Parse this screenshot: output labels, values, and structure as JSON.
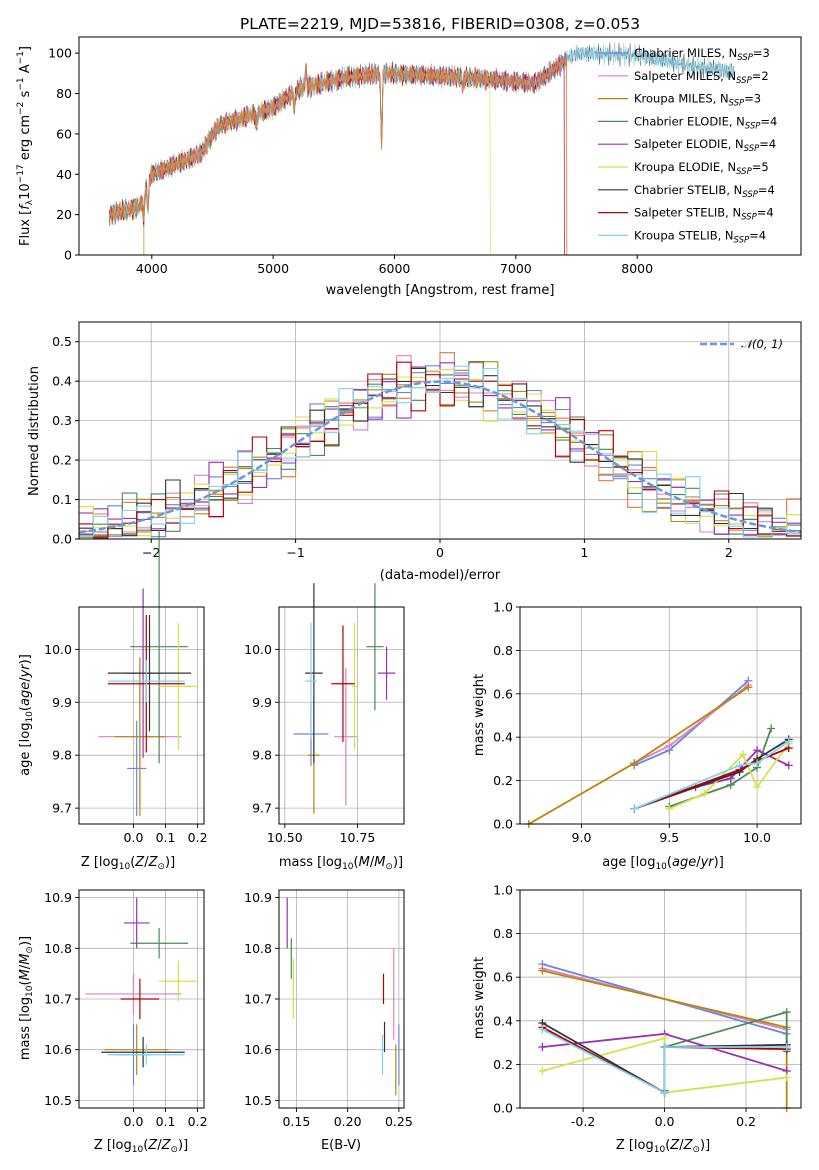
{
  "colors": [
    "#6a86d8",
    "#e47ec0",
    "#b8860b",
    "#4a8a55",
    "#9b30b5",
    "#d4e24a",
    "#333333",
    "#b30000",
    "#7fd4f0",
    "#e07b39"
  ],
  "spectrum": {
    "title": "PLATE=2219, MJD=53816, FIBERID=0308, z=0.053",
    "xlabel": "wavelength [Angstrom, rest frame]",
    "ylabel": "Flux [fλ 10⁻¹⁷ erg cm⁻² s⁻¹ A⁻¹]",
    "legend": [
      "Chabrier MILES, N_SSP=3",
      "Salpeter MILES, N_SSP=2",
      "Kroupa MILES, N_SSP=3",
      "Chabrier ELODIE, N_SSP=4",
      "Salpeter ELODIE, N_SSP=4",
      "Kroupa ELODIE, N_SSP=5",
      "Chabrier STELIB, N_SSP=4",
      "Salpeter STELIB, N_SSP=4",
      "Kroupa STELIB, N_SSP=4"
    ]
  },
  "hist": {
    "xlabel": "(data-model)/error",
    "ylabel": "Normed distribution",
    "legend": "N(0, 1)"
  },
  "chart_data": [
    {
      "type": "line",
      "id": "spectrum",
      "title": "PLATE=2219, MJD=53816, FIBERID=0308, z=0.053",
      "xlabel": "wavelength [Angstrom, rest frame]",
      "ylabel": "Flux [fλ 10⁻¹⁷ erg cm⁻² s⁻¹ A⁻¹]",
      "xlim": [
        3400,
        9350
      ],
      "ylim": [
        0,
        108
      ],
      "xticks": [
        4000,
        5000,
        6000,
        7000,
        8000
      ],
      "yticks": [
        0,
        20,
        40,
        60,
        80,
        100
      ],
      "continuum": {
        "x": [
          3650,
          3900,
          3950,
          4000,
          4400,
          4550,
          5000,
          5200,
          5600,
          5900,
          6600,
          7150,
          7250,
          7420,
          7500,
          8000,
          8500,
          8800
        ],
        "y": [
          20,
          24,
          33,
          40,
          50,
          64,
          73,
          82,
          88,
          90,
          88,
          85,
          89,
          97,
          100,
          99,
          93,
          91
        ]
      },
      "features": {
        "absorption": [
          {
            "x": 3933,
            "depth": 12
          },
          {
            "x": 3968,
            "depth": 12
          },
          {
            "x": 4861,
            "depth": 6
          },
          {
            "x": 5175,
            "depth": 8
          },
          {
            "x": 5893,
            "depth": 35
          },
          {
            "x": 6563,
            "depth": 5
          }
        ],
        "emission": [
          {
            "x": 5270,
            "height": 10
          }
        ]
      },
      "truncations": [
        {
          "series": "Kroupa MILES",
          "x": 3935
        },
        {
          "series": "Kroupa ELODIE",
          "x": 6790
        },
        {
          "series": "Salpeter STELIB",
          "x": 7400
        }
      ],
      "legend_loc": "upper right"
    },
    {
      "type": "step",
      "id": "residual-histogram",
      "xlabel": "(data-model)/error",
      "ylabel": "Normed distribution",
      "xlim": [
        -2.5,
        2.5
      ],
      "ylim": [
        0,
        0.55
      ],
      "xticks": [
        -2,
        -1,
        0,
        1,
        2
      ],
      "yticks": [
        0.0,
        0.1,
        0.2,
        0.3,
        0.4,
        0.5
      ],
      "bins": {
        "start": -2.5,
        "width": 0.1,
        "count": 50
      },
      "reference_curve": "N(0, 1)",
      "grid": true,
      "legend_loc": "upper right"
    },
    {
      "type": "errorbar",
      "id": "age-vs-Z",
      "xlabel": "Z [log10(Z/Z⊙)]",
      "ylabel": "age [log10(age/yr)]",
      "xlim": [
        -0.17,
        0.22
      ],
      "ylim": [
        9.67,
        10.08
      ],
      "xticks": [
        0.0,
        0.1,
        0.2
      ],
      "yticks": [
        9.7,
        9.8,
        9.9,
        10.0
      ],
      "points": [
        {
          "x": 0.01,
          "y": 9.775,
          "xerr": 0.03,
          "yerr": 0.09
        },
        {
          "x": 0.02,
          "y": 9.835,
          "xerr": 0.13,
          "yerr": 0.13
        },
        {
          "x": 0.02,
          "y": 9.835,
          "xerr": 0.08,
          "yerr": 0.15
        },
        {
          "x": 0.08,
          "y": 10.005,
          "xerr": 0.09,
          "yerr": 0.22
        },
        {
          "x": 0.03,
          "y": 9.955,
          "xerr": 0.06,
          "yerr": 0.16
        },
        {
          "x": 0.14,
          "y": 9.93,
          "xerr": 0.06,
          "yerr": 0.12
        },
        {
          "x": 0.05,
          "y": 9.955,
          "xerr": 0.13,
          "yerr": 0.11
        },
        {
          "x": 0.04,
          "y": 9.935,
          "xerr": 0.12,
          "yerr": 0.13
        },
        {
          "x": 0.04,
          "y": 9.94,
          "xerr": 0.12,
          "yerr": 0.04
        }
      ]
    },
    {
      "type": "errorbar",
      "id": "age-vs-mass",
      "xlabel": "mass [log10(M/M⊙)]",
      "xlim": [
        10.48,
        10.91
      ],
      "ylim": [
        9.67,
        10.08
      ],
      "xticks": [
        10.5,
        10.75
      ],
      "xticklabels": [
        "10.50",
        "10.75"
      ],
      "yticks": [
        9.7,
        9.8,
        9.9,
        10.0
      ],
      "points": [
        {
          "x": 10.59,
          "y": 9.84,
          "xerr": 0.06,
          "yerr": 0.06
        },
        {
          "x": 10.71,
          "y": 9.835,
          "xerr": 0.04,
          "yerr": 0.13
        },
        {
          "x": 10.6,
          "y": 9.8,
          "xerr": 0.02,
          "yerr": 0.11
        },
        {
          "x": 10.81,
          "y": 10.005,
          "xerr": 0.03,
          "yerr": 0.12
        },
        {
          "x": 10.85,
          "y": 9.955,
          "xerr": 0.03,
          "yerr": 0.05
        },
        {
          "x": 10.74,
          "y": 9.93,
          "xerr": 0.01,
          "yerr": 0.12
        },
        {
          "x": 10.6,
          "y": 9.955,
          "xerr": 0.03,
          "yerr": 0.17
        },
        {
          "x": 10.7,
          "y": 9.935,
          "xerr": 0.04,
          "yerr": 0.11
        },
        {
          "x": 10.59,
          "y": 9.94,
          "xerr": 0.02,
          "yerr": 0.11
        }
      ]
    },
    {
      "type": "line",
      "id": "mass-weight-vs-age",
      "xlabel": "age [log10(age/yr)]",
      "ylabel": "mass weight",
      "xlim": [
        8.65,
        10.25
      ],
      "ylim": [
        0.0,
        1.0
      ],
      "xticks": [
        9.0,
        9.5,
        10.0
      ],
      "yticks": [
        0.0,
        0.2,
        0.4,
        0.6,
        0.8,
        1.0
      ],
      "series": [
        {
          "x": [
            9.3,
            9.5,
            9.95
          ],
          "y": [
            0.27,
            0.34,
            0.66
          ]
        },
        {
          "x": [
            9.3,
            9.5,
            9.95
          ],
          "y": [
            0.28,
            0.36,
            0.64
          ]
        },
        {
          "x": [
            8.7,
            9.3,
            9.95
          ],
          "y": [
            0.0,
            0.28,
            0.63
          ]
        },
        {
          "x": [
            9.5,
            9.85,
            10.0,
            10.08
          ],
          "y": [
            0.08,
            0.18,
            0.26,
            0.44
          ]
        },
        {
          "x": [
            9.65,
            9.85,
            10.0,
            10.18
          ],
          "y": [
            0.17,
            0.21,
            0.34,
            0.27
          ]
        },
        {
          "x": [
            9.5,
            9.7,
            9.92,
            10.0,
            10.18
          ],
          "y": [
            0.07,
            0.14,
            0.32,
            0.17,
            0.37
          ]
        },
        {
          "x": [
            9.3,
            9.9,
            10.0,
            10.18
          ],
          "y": [
            0.07,
            0.24,
            0.3,
            0.39
          ]
        },
        {
          "x": [
            9.3,
            9.9,
            10.0,
            10.18
          ],
          "y": [
            0.07,
            0.25,
            0.29,
            0.35
          ]
        },
        {
          "x": [
            9.3,
            9.9,
            10.0,
            10.18
          ],
          "y": [
            0.07,
            0.27,
            0.28,
            0.38
          ]
        }
      ]
    },
    {
      "type": "errorbar",
      "id": "mass-vs-Z",
      "xlabel": "Z [log10(Z/Z⊙)]",
      "ylabel": "mass [log10(M/M⊙)]",
      "xlim": [
        -0.17,
        0.22
      ],
      "ylim": [
        10.485,
        10.915
      ],
      "xticks": [
        0.0,
        0.1,
        0.2
      ],
      "yticks": [
        10.5,
        10.6,
        10.7,
        10.8,
        10.9
      ],
      "points": [
        {
          "x": 0.0,
          "y": 10.59,
          "xerr": 0.06,
          "yerr": 0.06
        },
        {
          "x": 0.0,
          "y": 10.71,
          "xerr": 0.15,
          "yerr": 0.04
        },
        {
          "x": 0.01,
          "y": 10.6,
          "xerr": 0.1,
          "yerr": 0.05
        },
        {
          "x": 0.08,
          "y": 10.81,
          "xerr": 0.09,
          "yerr": 0.03
        },
        {
          "x": 0.01,
          "y": 10.85,
          "xerr": 0.04,
          "yerr": 0.05
        },
        {
          "x": 0.14,
          "y": 10.735,
          "xerr": 0.06,
          "yerr": 0.04
        },
        {
          "x": 0.03,
          "y": 10.595,
          "xerr": 0.13,
          "yerr": 0.03
        },
        {
          "x": 0.02,
          "y": 10.7,
          "xerr": 0.06,
          "yerr": 0.04
        },
        {
          "x": 0.04,
          "y": 10.59,
          "xerr": 0.12,
          "yerr": 0.02
        }
      ]
    },
    {
      "type": "errorbar",
      "id": "mass-vs-EBV",
      "xlabel": "E(B-V)",
      "xlim": [
        0.133,
        0.255
      ],
      "ylim": [
        10.485,
        10.915
      ],
      "xticks": [
        0.15,
        0.2,
        0.25
      ],
      "xticklabels": [
        "0.15",
        "0.20",
        "0.25"
      ],
      "yticks": [
        10.5,
        10.6,
        10.7,
        10.8,
        10.9
      ],
      "points": [
        {
          "x": 0.25,
          "y": 10.59,
          "xerr": 0.0,
          "yerr": 0.06
        },
        {
          "x": 0.245,
          "y": 10.71,
          "xerr": 0.0,
          "yerr": 0.09
        },
        {
          "x": 0.247,
          "y": 10.56,
          "xerr": 0.0,
          "yerr": 0.05
        },
        {
          "x": 0.145,
          "y": 10.78,
          "xerr": 0.0,
          "yerr": 0.04
        },
        {
          "x": 0.141,
          "y": 10.85,
          "xerr": 0.0,
          "yerr": 0.05
        },
        {
          "x": 0.147,
          "y": 10.72,
          "xerr": 0.0,
          "yerr": 0.06
        },
        {
          "x": 0.236,
          "y": 10.625,
          "xerr": 0.0,
          "yerr": 0.03
        },
        {
          "x": 0.235,
          "y": 10.72,
          "xerr": 0.0,
          "yerr": 0.03
        },
        {
          "x": 0.234,
          "y": 10.59,
          "xerr": 0.0,
          "yerr": 0.04
        }
      ]
    },
    {
      "type": "line",
      "id": "mass-weight-vs-Z",
      "xlabel": "Z [log10(Z/Z⊙)]",
      "ylabel": "mass weight",
      "xlim": [
        -0.355,
        0.335
      ],
      "ylim": [
        0.0,
        1.0
      ],
      "xticks": [
        -0.2,
        0.0,
        0.2
      ],
      "yticks": [
        0.0,
        0.2,
        0.4,
        0.6,
        0.8,
        1.0
      ],
      "series": [
        {
          "x": [
            -0.3,
            0.3
          ],
          "y": [
            0.66,
            0.34
          ]
        },
        {
          "x": [
            -0.3,
            0.3
          ],
          "y": [
            0.64,
            0.36
          ]
        },
        {
          "x": [
            -0.3,
            0.3,
            0.3
          ],
          "y": [
            0.63,
            0.37,
            0.0
          ]
        },
        {
          "x": [
            0.0,
            0.0,
            0.3,
            0.3
          ],
          "y": [
            0.08,
            0.28,
            0.44,
            0.26
          ]
        },
        {
          "x": [
            -0.3,
            0.0,
            0.3
          ],
          "y": [
            0.28,
            0.34,
            0.17
          ]
        },
        {
          "x": [
            -0.3,
            0.0,
            0.0,
            0.3
          ],
          "y": [
            0.17,
            0.32,
            0.07,
            0.14
          ]
        },
        {
          "x": [
            -0.3,
            0.0,
            0.0,
            0.3
          ],
          "y": [
            0.39,
            0.07,
            0.28,
            0.29
          ]
        },
        {
          "x": [
            -0.3,
            0.0,
            0.0,
            0.3
          ],
          "y": [
            0.37,
            0.07,
            0.28,
            0.27
          ]
        },
        {
          "x": [
            -0.3,
            0.0,
            0.0,
            0.3
          ],
          "y": [
            0.36,
            0.07,
            0.28,
            0.28
          ]
        }
      ]
    }
  ]
}
